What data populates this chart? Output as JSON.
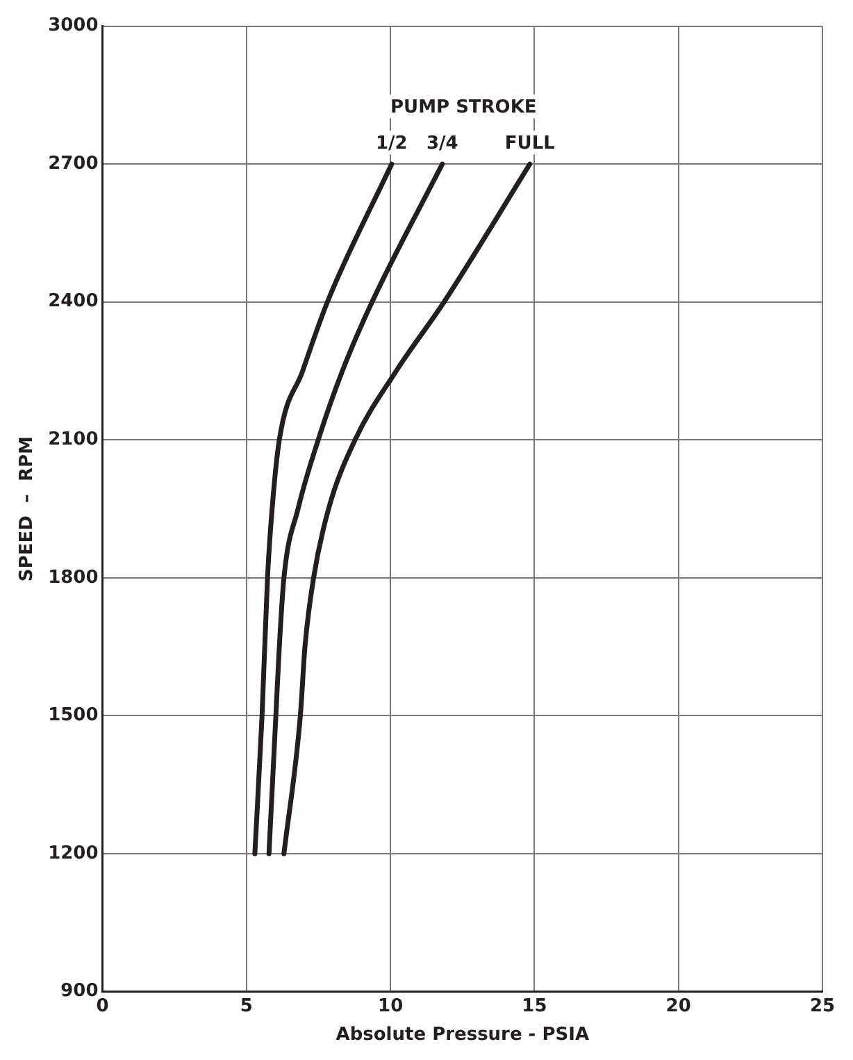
{
  "chart_data": {
    "type": "line",
    "xlabel": "Absolute Pressure - PSIA",
    "ylabel": "SPEED  –  RPM",
    "legend_title": "PUMP STROKE",
    "xlim": [
      0,
      25
    ],
    "xticks": [
      0,
      5,
      10,
      15,
      20,
      25
    ],
    "ylim": [
      900,
      3000
    ],
    "yticks": [
      900,
      1200,
      1500,
      1800,
      2100,
      2400,
      2700,
      3000
    ],
    "grid": true,
    "marker": "none",
    "line_style": "solid",
    "series": [
      {
        "name": "1/2",
        "color": "#231f20",
        "x": [
          5.29,
          5.54,
          5.73,
          5.89,
          6.14,
          6.95,
          7.81,
          10.04
        ],
        "values": [
          1200,
          1500,
          1800,
          1950,
          2100,
          2250,
          2400,
          2700
        ]
      },
      {
        "name": "3/4",
        "color": "#231f20",
        "x": [
          5.78,
          6.02,
          6.14,
          6.3,
          6.79,
          7.49,
          8.33,
          9.36,
          11.8
        ],
        "values": [
          1200,
          1500,
          1650,
          1800,
          1950,
          2100,
          2250,
          2400,
          2700
        ]
      },
      {
        "name": "FULL",
        "color": "#231f20",
        "x": [
          6.3,
          6.87,
          7.03,
          7.33,
          7.85,
          8.77,
          10.2,
          11.86,
          14.84
        ],
        "values": [
          1200,
          1500,
          1650,
          1800,
          1950,
          2100,
          2250,
          2400,
          2700
        ]
      }
    ]
  }
}
